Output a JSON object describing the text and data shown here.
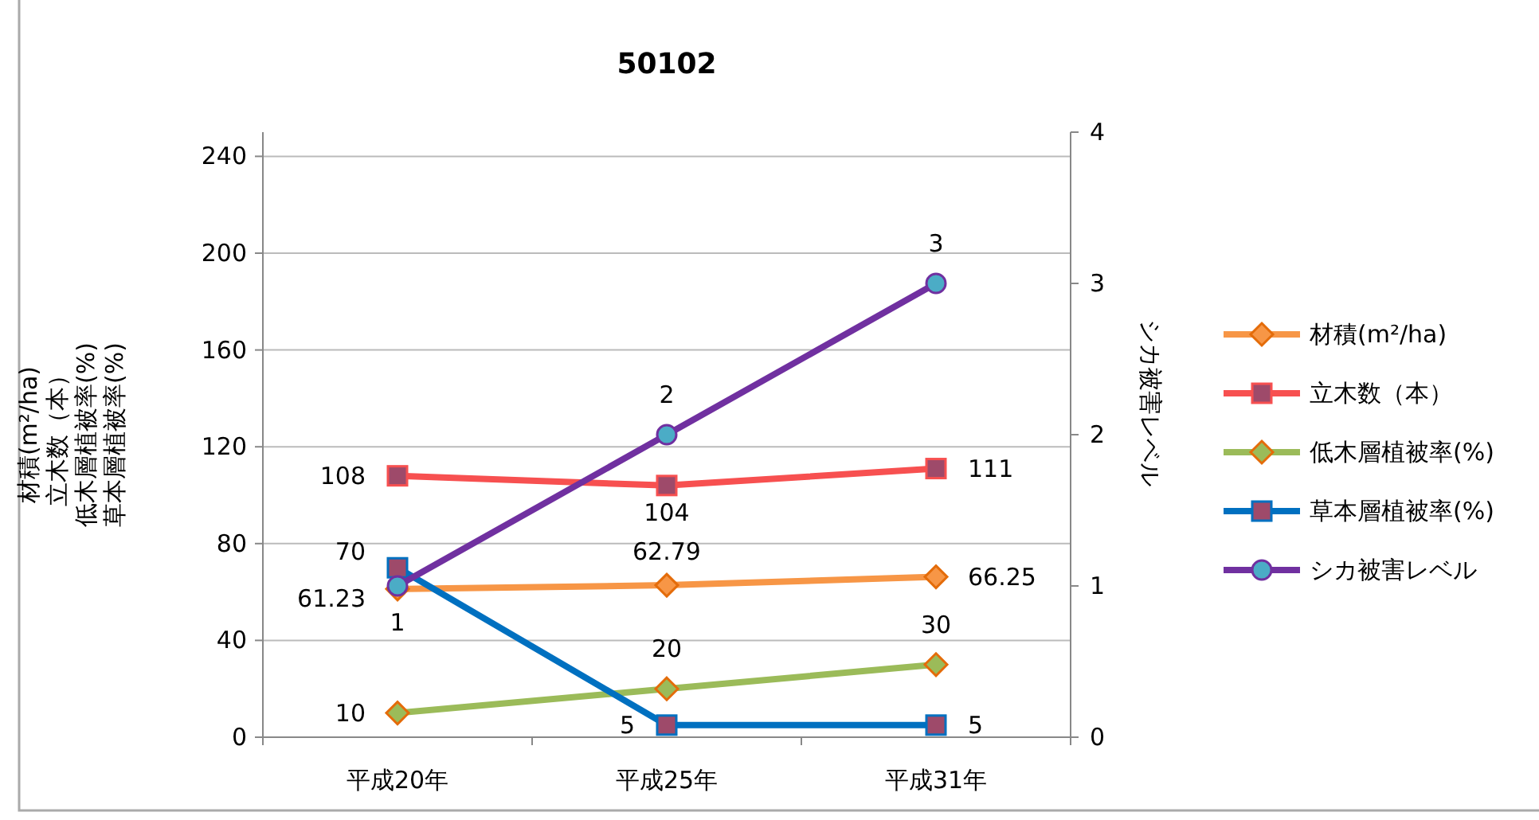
{
  "chart_data": {
    "type": "line",
    "title": "50102",
    "ylabel": [
      "材積(m²/ha)",
      "立木数（本）",
      "低木層植被率(%)",
      "草本層植被率(%)"
    ],
    "y2label": "シカ被害レベル",
    "categories": [
      "平成20年",
      "平成25年",
      "平成31年"
    ],
    "series": [
      {
        "name": "材積(m²/ha)",
        "color": "#f79646",
        "marker": "diamond",
        "values": [
          61.23,
          62.79,
          66.25
        ]
      },
      {
        "name": "立木数（本）",
        "color": "#f75050",
        "marker": "square",
        "values": [
          108,
          104,
          111
        ]
      },
      {
        "name": "低木層植被率(%)",
        "color": "#9bbb59",
        "marker": "diamond",
        "values": [
          10,
          20,
          30
        ]
      },
      {
        "name": "草本層植被率(%)",
        "color": "#0070c0",
        "marker": "square",
        "values": [
          70,
          5,
          5
        ]
      },
      {
        "name": "シカ被害レベル",
        "color": "#7030a0",
        "marker": "circle",
        "axis": "y2",
        "values": [
          1,
          2,
          3
        ]
      }
    ],
    "ylim": [
      0,
      250
    ],
    "yticks": [
      0,
      40,
      80,
      120,
      160,
      200,
      240
    ],
    "y2lim": [
      0,
      4
    ],
    "y2ticks": [
      0,
      1,
      2,
      3,
      4
    ],
    "grid": "y",
    "legend": "right",
    "data_labels": true
  }
}
